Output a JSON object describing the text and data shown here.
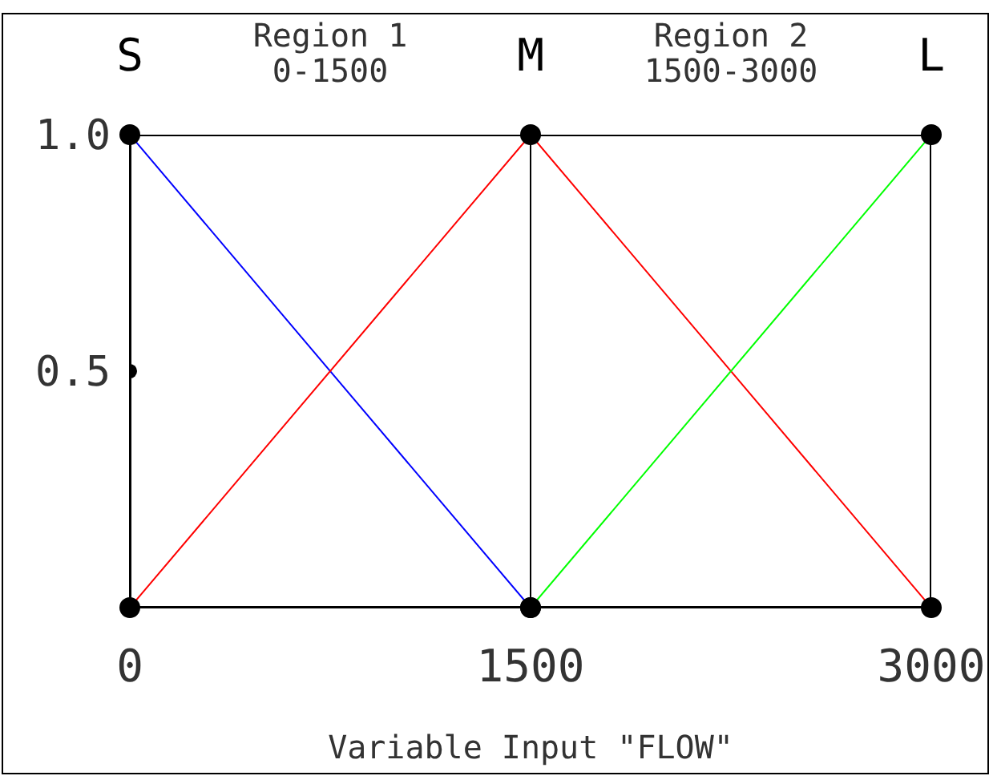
{
  "chart_data": {
    "type": "line",
    "xlabel": "Variable Input \"FLOW\"",
    "x": [
      0,
      1500,
      3000
    ],
    "series": [
      {
        "name": "S",
        "color": "#0000ff",
        "values": [
          1,
          0,
          null
        ]
      },
      {
        "name": "M",
        "color": "#ff0000",
        "values": [
          0,
          1,
          0
        ]
      },
      {
        "name": "L",
        "color": "#00ff00",
        "values": [
          null,
          0,
          1
        ]
      },
      {
        "type": "scatter",
        "color": "#000000",
        "x": [
          0
        ],
        "values": [
          0.5
        ]
      }
    ],
    "xlim": [
      0,
      3000
    ],
    "xticks": [
      0,
      1500,
      3000
    ],
    "ylim": [
      0,
      1
    ],
    "yticks": [
      {
        "value": 0,
        "label": null
      },
      {
        "value": 0.5,
        "label": "0.5"
      },
      {
        "value": 1,
        "label": "1.0"
      }
    ],
    "ref_lines": [
      {
        "axis": "x",
        "value": 1500,
        "color": "#000000"
      }
    ],
    "annotations": [
      "Region 1",
      "0-1500",
      "Region 2",
      "1500-3000"
    ],
    "grid": false,
    "legend": false,
    "marker": "circle",
    "line_style": "solid"
  }
}
